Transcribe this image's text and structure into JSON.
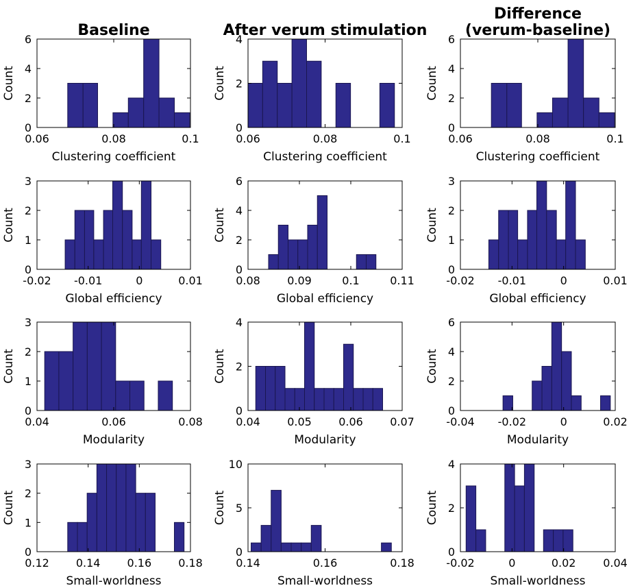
{
  "colors": {
    "bar": "#2e2a8c",
    "bar_edge": "#1a1650",
    "axis": "#000000"
  },
  "chart_data": [
    {
      "type": "bar",
      "title": "Baseline",
      "xlabel": "Clustering coefficient",
      "ylabel": "Count",
      "xlim": [
        0.06,
        0.1
      ],
      "ylim": [
        0,
        6
      ],
      "xticks": [
        "0.06",
        "0.08",
        "0.1"
      ],
      "yticks": [
        "0",
        "2",
        "4",
        "6"
      ],
      "bins": [
        [
          0.068,
          0.072,
          3
        ],
        [
          0.072,
          0.0758,
          3
        ],
        [
          0.0798,
          0.0838,
          1
        ],
        [
          0.0838,
          0.0878,
          2
        ],
        [
          0.0878,
          0.0918,
          6
        ],
        [
          0.0918,
          0.0958,
          2
        ],
        [
          0.0958,
          0.0998,
          1
        ]
      ]
    },
    {
      "type": "bar",
      "title": "After verum stimulation",
      "xlabel": "Clustering coefficient",
      "ylabel": "Count",
      "xlim": [
        0.06,
        0.1
      ],
      "ylim": [
        0,
        4
      ],
      "xticks": [
        "0.06",
        "0.08",
        "0.1"
      ],
      "yticks": [
        "0",
        "2",
        "4"
      ],
      "bins": [
        [
          0.06,
          0.0638,
          2
        ],
        [
          0.0638,
          0.0676,
          3
        ],
        [
          0.0676,
          0.0714,
          2
        ],
        [
          0.0714,
          0.0752,
          4
        ],
        [
          0.0752,
          0.079,
          3
        ],
        [
          0.0828,
          0.0866,
          2
        ],
        [
          0.0942,
          0.098,
          2
        ]
      ]
    },
    {
      "type": "bar",
      "title": "Difference\n(verum-baseline)",
      "xlabel": "Clustering coefficient",
      "ylabel": "Count",
      "xlim": [
        0.06,
        0.1
      ],
      "ylim": [
        0,
        6
      ],
      "xticks": [
        "0.06",
        "0.08",
        "0.1"
      ],
      "yticks": [
        "0",
        "2",
        "4",
        "6"
      ],
      "bins": [
        [
          0.068,
          0.072,
          3
        ],
        [
          0.072,
          0.0758,
          3
        ],
        [
          0.0798,
          0.0838,
          1
        ],
        [
          0.0838,
          0.0878,
          2
        ],
        [
          0.0878,
          0.0918,
          6
        ],
        [
          0.0918,
          0.0958,
          2
        ],
        [
          0.0958,
          0.0998,
          1
        ]
      ]
    },
    {
      "type": "bar",
      "title": "",
      "xlabel": "Global efficiency",
      "ylabel": "Count",
      "xlim": [
        -0.02,
        0.01
      ],
      "ylim": [
        0,
        3
      ],
      "xticks": [
        "-0.02",
        "-0.01",
        "0",
        "0.01"
      ],
      "yticks": [
        "0",
        "1",
        "2",
        "3"
      ],
      "bins": [
        [
          -0.0145,
          -0.0126,
          1
        ],
        [
          -0.0126,
          -0.0107,
          2
        ],
        [
          -0.0107,
          -0.0089,
          2
        ],
        [
          -0.0089,
          -0.007,
          1
        ],
        [
          -0.007,
          -0.0052,
          2
        ],
        [
          -0.0052,
          -0.0033,
          3
        ],
        [
          -0.0033,
          -0.0014,
          2
        ],
        [
          -0.0014,
          0.0004,
          1
        ],
        [
          0.0004,
          0.0023,
          3
        ],
        [
          0.0023,
          0.0042,
          1
        ]
      ]
    },
    {
      "type": "bar",
      "title": "",
      "xlabel": "Global efficiency",
      "ylabel": "Count",
      "xlim": [
        0.08,
        0.11
      ],
      "ylim": [
        0,
        6
      ],
      "xticks": [
        "0.08",
        "0.09",
        "0.1",
        "0.11"
      ],
      "yticks": [
        "0",
        "2",
        "4",
        "6"
      ],
      "bins": [
        [
          0.084,
          0.0859,
          1
        ],
        [
          0.0859,
          0.0878,
          3
        ],
        [
          0.0878,
          0.0897,
          2
        ],
        [
          0.0897,
          0.0916,
          2
        ],
        [
          0.0916,
          0.0935,
          3
        ],
        [
          0.0935,
          0.0954,
          5
        ],
        [
          0.1011,
          0.103,
          1
        ],
        [
          0.103,
          0.1049,
          1
        ]
      ]
    },
    {
      "type": "bar",
      "title": "",
      "xlabel": "Global efficiency",
      "ylabel": "Count",
      "xlim": [
        -0.02,
        0.01
      ],
      "ylim": [
        0,
        3
      ],
      "xticks": [
        "-0.02",
        "-0.01",
        "0",
        "0.01"
      ],
      "yticks": [
        "0",
        "1",
        "2",
        "3"
      ],
      "bins": [
        [
          -0.0145,
          -0.0126,
          1
        ],
        [
          -0.0126,
          -0.0107,
          2
        ],
        [
          -0.0107,
          -0.0089,
          2
        ],
        [
          -0.0089,
          -0.007,
          1
        ],
        [
          -0.007,
          -0.0052,
          2
        ],
        [
          -0.0052,
          -0.0033,
          3
        ],
        [
          -0.0033,
          -0.0014,
          2
        ],
        [
          -0.0014,
          0.0004,
          1
        ],
        [
          0.0004,
          0.0023,
          3
        ],
        [
          0.0023,
          0.0042,
          1
        ]
      ]
    },
    {
      "type": "bar",
      "title": "",
      "xlabel": "Modularity",
      "ylabel": "Count",
      "xlim": [
        0.04,
        0.08
      ],
      "ylim": [
        0,
        3
      ],
      "xticks": [
        "0.04",
        "0.06",
        "0.08"
      ],
      "yticks": [
        "0",
        "1",
        "2",
        "3"
      ],
      "bins": [
        [
          0.042,
          0.0457,
          2
        ],
        [
          0.0457,
          0.0494,
          2
        ],
        [
          0.0494,
          0.0531,
          3
        ],
        [
          0.0531,
          0.0568,
          3
        ],
        [
          0.0568,
          0.0605,
          3
        ],
        [
          0.0605,
          0.0642,
          1
        ],
        [
          0.0642,
          0.0679,
          1
        ],
        [
          0.0716,
          0.0753,
          1
        ]
      ]
    },
    {
      "type": "bar",
      "title": "",
      "xlabel": "Modularity",
      "ylabel": "Count",
      "xlim": [
        0.04,
        0.07
      ],
      "ylim": [
        0,
        4
      ],
      "xticks": [
        "0.04",
        "0.05",
        "0.06",
        "0.07"
      ],
      "yticks": [
        "0",
        "2",
        "4"
      ],
      "bins": [
        [
          0.0415,
          0.0434,
          2
        ],
        [
          0.0434,
          0.0453,
          2
        ],
        [
          0.0453,
          0.0472,
          2
        ],
        [
          0.0472,
          0.0491,
          1
        ],
        [
          0.0491,
          0.051,
          1
        ],
        [
          0.051,
          0.0529,
          4
        ],
        [
          0.0529,
          0.0548,
          1
        ],
        [
          0.0548,
          0.0567,
          1
        ],
        [
          0.0567,
          0.0586,
          1
        ],
        [
          0.0586,
          0.0605,
          3
        ],
        [
          0.0605,
          0.0624,
          1
        ],
        [
          0.0624,
          0.0643,
          1
        ],
        [
          0.0643,
          0.0662,
          1
        ]
      ]
    },
    {
      "type": "bar",
      "title": "",
      "xlabel": "Modularity",
      "ylabel": "Count",
      "xlim": [
        -0.04,
        0.02
      ],
      "ylim": [
        0,
        6
      ],
      "xticks": [
        "-0.04",
        "-0.02",
        "0",
        "0.02"
      ],
      "yticks": [
        "0",
        "2",
        "4",
        "6"
      ],
      "bins": [
        [
          -0.0235,
          -0.0197,
          1
        ],
        [
          -0.0122,
          -0.0084,
          2
        ],
        [
          -0.0084,
          -0.0046,
          3
        ],
        [
          -0.0046,
          -0.0008,
          6
        ],
        [
          -0.0008,
          0.003,
          4
        ],
        [
          0.003,
          0.0068,
          1
        ],
        [
          0.0143,
          0.0181,
          1
        ]
      ]
    },
    {
      "type": "bar",
      "title": "",
      "xlabel": "Small-worldness",
      "ylabel": "Count",
      "xlim": [
        0.12,
        0.18
      ],
      "ylim": [
        0,
        3
      ],
      "xticks": [
        "0.12",
        "0.14",
        "0.16",
        "0.18"
      ],
      "yticks": [
        "0",
        "1",
        "2",
        "3"
      ],
      "bins": [
        [
          0.132,
          0.1358,
          1
        ],
        [
          0.1358,
          0.1396,
          1
        ],
        [
          0.1396,
          0.1434,
          2
        ],
        [
          0.1434,
          0.1472,
          3
        ],
        [
          0.1472,
          0.151,
          3
        ],
        [
          0.151,
          0.1548,
          3
        ],
        [
          0.1548,
          0.1586,
          3
        ],
        [
          0.1586,
          0.1624,
          2
        ],
        [
          0.1624,
          0.1662,
          2
        ],
        [
          0.1737,
          0.1775,
          1
        ]
      ]
    },
    {
      "type": "bar",
      "title": "",
      "xlabel": "Small-worldness",
      "ylabel": "Count",
      "xlim": [
        0.14,
        0.18
      ],
      "ylim": [
        0,
        10
      ],
      "xticks": [
        "0.14",
        "0.16",
        "0.18"
      ],
      "yticks": [
        "0",
        "5",
        "10"
      ],
      "bins": [
        [
          0.1408,
          0.1434,
          1
        ],
        [
          0.1434,
          0.146,
          3
        ],
        [
          0.146,
          0.1486,
          7
        ],
        [
          0.1486,
          0.1512,
          1
        ],
        [
          0.1512,
          0.1538,
          1
        ],
        [
          0.1538,
          0.1564,
          1
        ],
        [
          0.1564,
          0.159,
          3
        ],
        [
          0.1746,
          0.1772,
          1
        ]
      ]
    },
    {
      "type": "bar",
      "title": "",
      "xlabel": "Small-worldness",
      "ylabel": "Count",
      "xlim": [
        -0.02,
        0.04
      ],
      "ylim": [
        0,
        4
      ],
      "xticks": [
        "-0.02",
        "0",
        "0.02",
        "0.04"
      ],
      "yticks": [
        "0",
        "2",
        "4"
      ],
      "bins": [
        [
          -0.0178,
          -0.014,
          3
        ],
        [
          -0.014,
          -0.0102,
          1
        ],
        [
          -0.0028,
          0.001,
          4
        ],
        [
          0.001,
          0.0048,
          3
        ],
        [
          0.0048,
          0.0086,
          4
        ],
        [
          0.0122,
          0.016,
          1
        ],
        [
          0.016,
          0.0198,
          1
        ],
        [
          0.0198,
          0.0236,
          1
        ]
      ]
    }
  ]
}
